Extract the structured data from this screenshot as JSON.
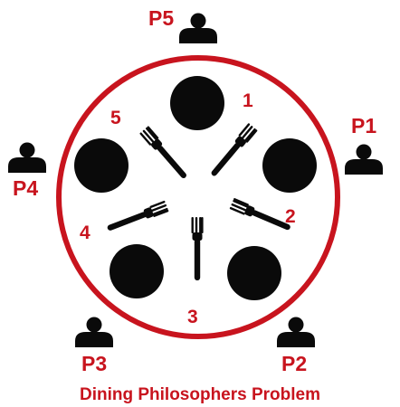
{
  "title": "Dining Philosophers Problem",
  "colors": {
    "accent": "#c8141e",
    "ink": "#0a0a0a",
    "background": "#ffffff"
  },
  "philosophers": [
    {
      "id": "p1",
      "label": "P1",
      "icon": "person-icon"
    },
    {
      "id": "p2",
      "label": "P2",
      "icon": "person-icon"
    },
    {
      "id": "p3",
      "label": "P3",
      "icon": "person-icon"
    },
    {
      "id": "p4",
      "label": "P4",
      "icon": "person-icon"
    },
    {
      "id": "p5",
      "label": "P5",
      "icon": "person-icon"
    }
  ],
  "forks": [
    {
      "id": "fork1",
      "label": "1",
      "icon": "fork-icon"
    },
    {
      "id": "fork2",
      "label": "2",
      "icon": "fork-icon"
    },
    {
      "id": "fork3",
      "label": "3",
      "icon": "fork-icon"
    },
    {
      "id": "fork4",
      "label": "4",
      "icon": "fork-icon"
    },
    {
      "id": "fork5",
      "label": "5",
      "icon": "fork-icon"
    }
  ],
  "plates": [
    {
      "id": "plate-top"
    },
    {
      "id": "plate-right"
    },
    {
      "id": "plate-bottom-right"
    },
    {
      "id": "plate-bottom-left"
    },
    {
      "id": "plate-left"
    }
  ]
}
